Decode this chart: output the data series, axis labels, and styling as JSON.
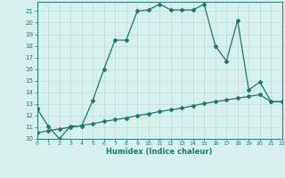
{
  "line1_x": [
    0,
    1,
    2,
    3,
    4,
    5,
    6,
    7,
    8,
    9,
    10,
    11,
    12,
    13,
    14,
    15,
    16,
    17,
    18,
    19,
    20,
    21,
    22
  ],
  "line1_y": [
    12.6,
    11.1,
    10.0,
    11.1,
    11.1,
    13.3,
    16.0,
    18.5,
    18.5,
    21.0,
    21.1,
    21.6,
    21.1,
    21.1,
    21.1,
    21.6,
    18.0,
    16.7,
    20.2,
    14.2,
    14.9,
    13.2,
    13.2
  ],
  "line2_x": [
    0,
    1,
    2,
    3,
    4,
    5,
    6,
    7,
    8,
    9,
    10,
    11,
    12,
    13,
    14,
    15,
    16,
    17,
    18,
    19,
    20,
    21,
    22
  ],
  "line2_y": [
    10.5,
    10.7,
    10.85,
    11.0,
    11.15,
    11.3,
    11.5,
    11.65,
    11.8,
    12.0,
    12.15,
    12.35,
    12.5,
    12.65,
    12.85,
    13.05,
    13.2,
    13.35,
    13.5,
    13.65,
    13.8,
    13.2,
    13.2
  ],
  "line_color": "#1a7a6e",
  "bg_color": "#d7f0ed",
  "grid_color": "#b8ddd8",
  "xlabel": "Humidex (Indice chaleur)",
  "xlim": [
    0,
    22
  ],
  "ylim": [
    10,
    21.8
  ],
  "xticks": [
    0,
    1,
    2,
    3,
    4,
    5,
    6,
    7,
    8,
    9,
    10,
    11,
    12,
    13,
    14,
    15,
    16,
    17,
    18,
    19,
    20,
    21,
    22
  ],
  "yticks": [
    10,
    11,
    12,
    13,
    14,
    15,
    16,
    17,
    18,
    19,
    20,
    21
  ],
  "marker": "D",
  "markersize": 2.0,
  "linewidth": 0.9
}
